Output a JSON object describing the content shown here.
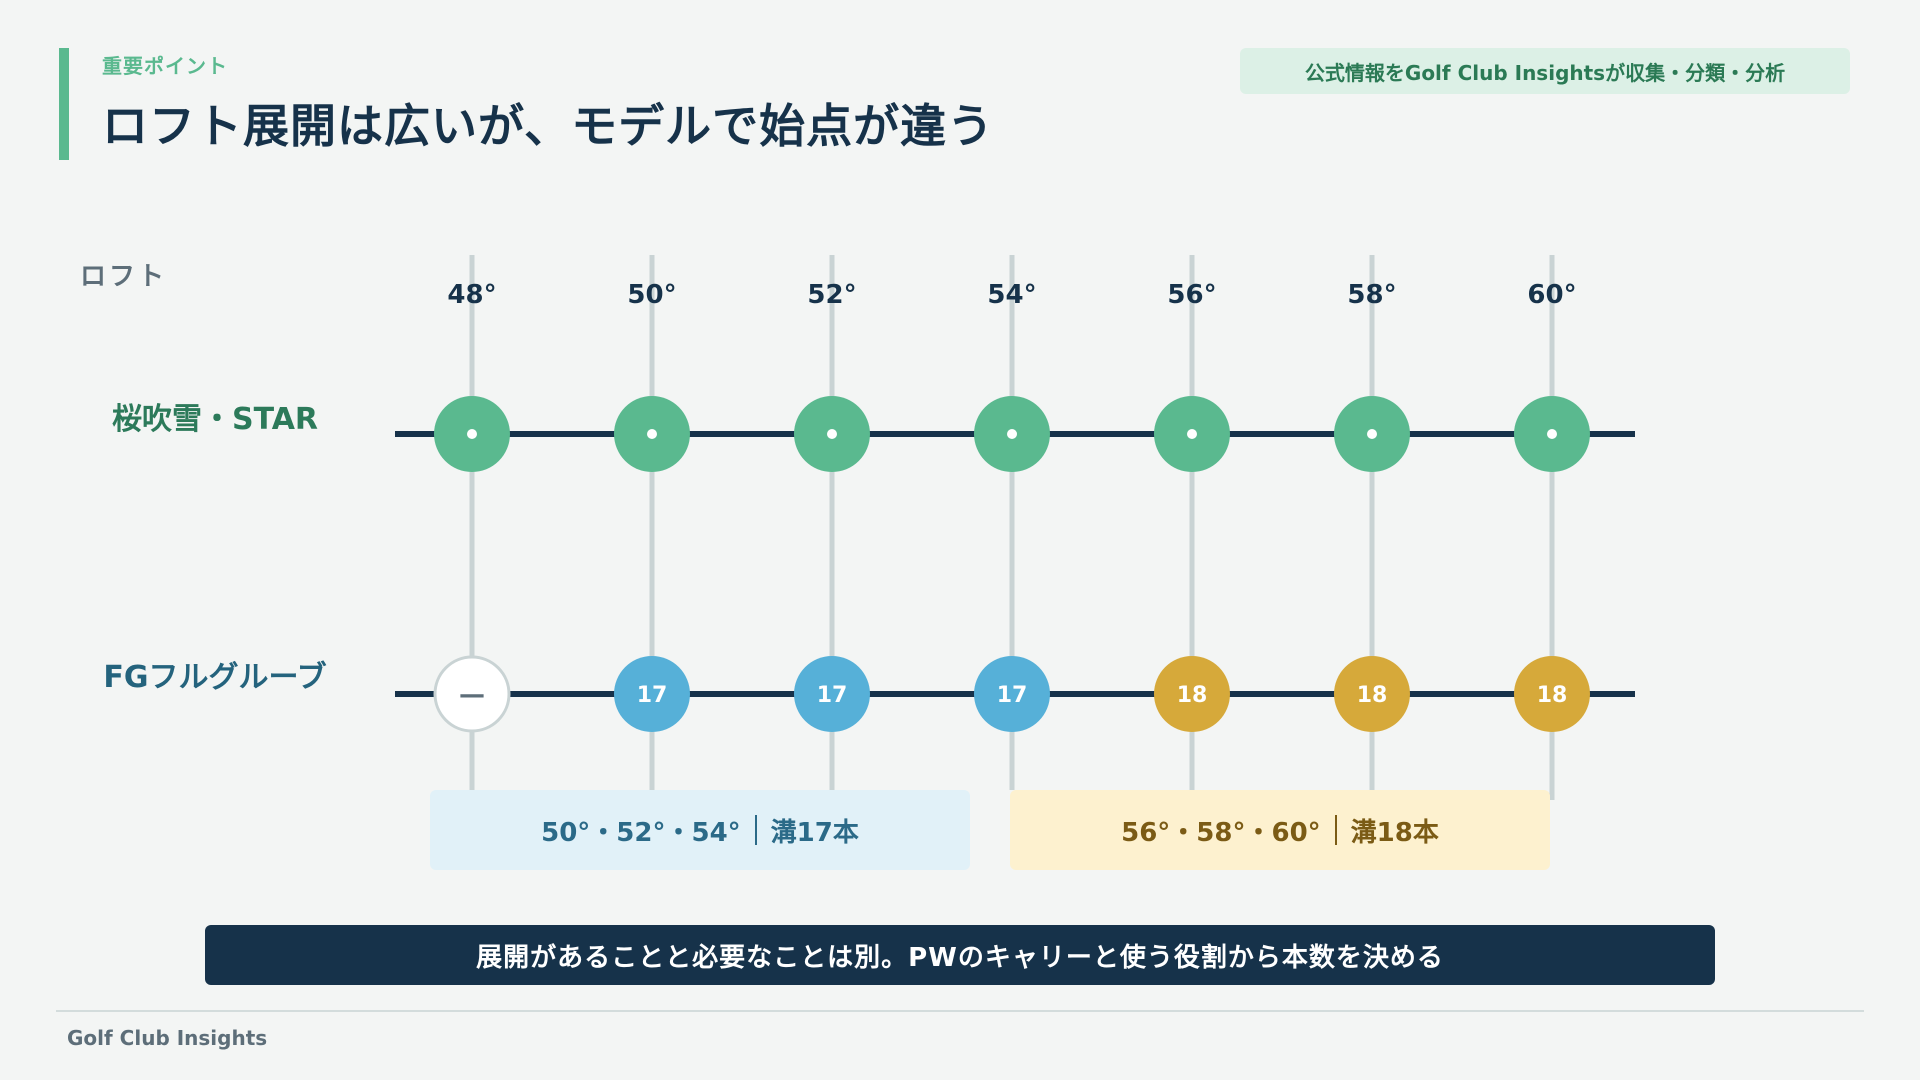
{
  "header": {
    "kicker": "重要ポイント",
    "title": "ロフト展開は広いが、モデルで始点が違う",
    "source_badge": "公式情報をGolf Club Insightsが収集・分類・分析"
  },
  "chart_data": {
    "type": "dot-matrix",
    "axis_label": "ロフト",
    "lofts": [
      "48°",
      "50°",
      "52°",
      "54°",
      "56°",
      "58°",
      "60°"
    ],
    "rows": [
      {
        "name": "桜吹雪・STAR",
        "values": [
          "•",
          "•",
          "•",
          "•",
          "•",
          "•",
          "•"
        ],
        "kinds": [
          "star",
          "star",
          "star",
          "star",
          "star",
          "star",
          "star"
        ],
        "color": "#5ab98f"
      },
      {
        "name": "FGフルグルーブ",
        "values": [
          "—",
          "17",
          "17",
          "17",
          "18",
          "18",
          "18"
        ],
        "kinds": [
          "empty",
          "blue",
          "blue",
          "blue",
          "gold",
          "gold",
          "gold"
        ],
        "color": "#24637d"
      }
    ],
    "colors": {
      "star": "#5ab98f",
      "blue": "#56b0d8",
      "gold": "#d6a93a",
      "empty_fill": "#ffffff",
      "empty_stroke": "#c9d3d4",
      "track": "#16324a",
      "gridline": "#c9d3d4"
    }
  },
  "groups": {
    "blue": {
      "lofts": "50°・52°・54°",
      "grooves": "溝17本"
    },
    "gold": {
      "lofts": "56°・58°・60°",
      "grooves": "溝18本"
    }
  },
  "banner": "展開があることと必要なことは別。PWのキャリーと使う役割から本数を決める",
  "footer": {
    "brand": "Golf Club Insights"
  }
}
